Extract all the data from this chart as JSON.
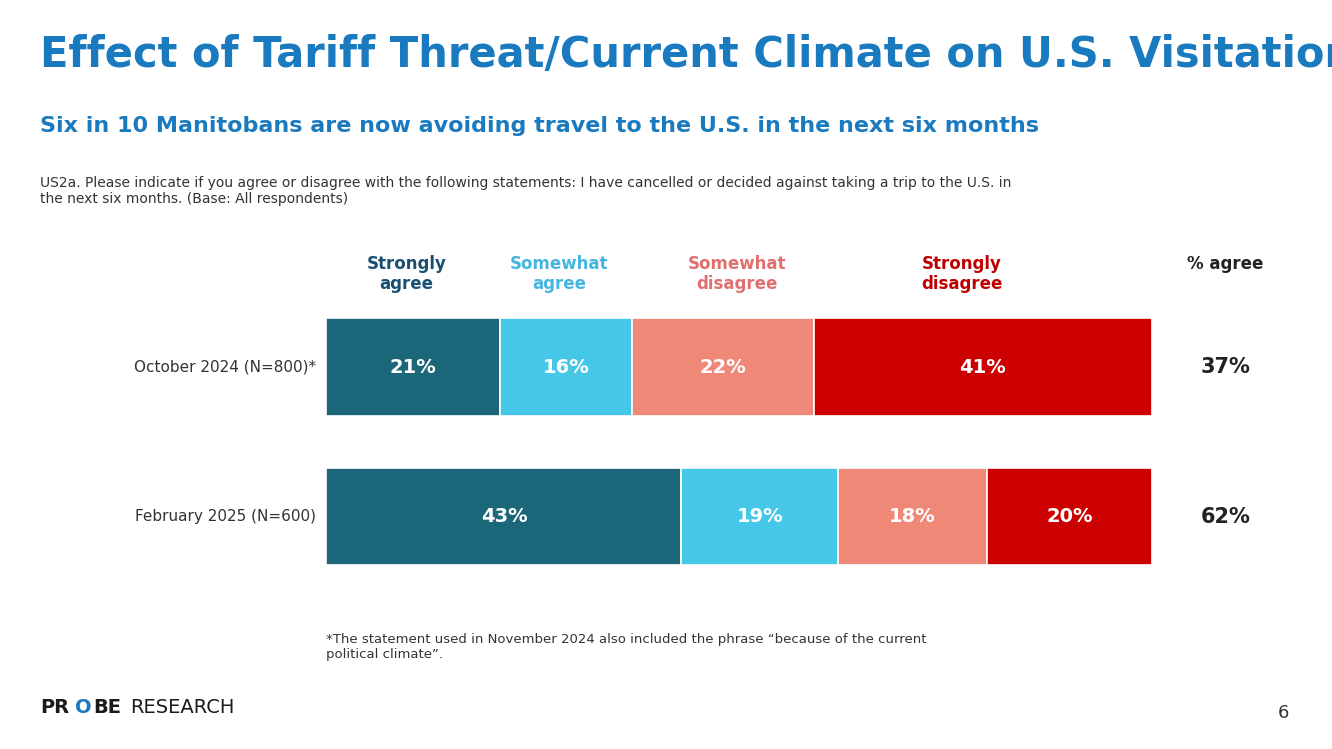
{
  "title": "Effect of Tariff Threat/Current Climate on U.S. Visitation",
  "subtitle": "Six in 10 Manitobans are now avoiding travel to the U.S. in the next six months",
  "question_text": "US2a. Please indicate if you agree or disagree with the following statements: I have cancelled or decided against taking a trip to the U.S. in\nthe next six months. (Base: All respondents)",
  "footnote": "*The statement used in November 2024 also included the phrase “because of the current\npolitical climate”.",
  "page_number": "6",
  "rows": [
    {
      "label": "October 2024 (N=800)*",
      "values": [
        21,
        16,
        22,
        41
      ],
      "pct_agree": "37%"
    },
    {
      "label": "February 2025 (N=600)",
      "values": [
        43,
        19,
        18,
        20
      ],
      "pct_agree": "62%"
    }
  ],
  "categories": [
    "Strongly\nagree",
    "Somewhat\nagree",
    "Somewhat\ndisagree",
    "Strongly\ndisagree"
  ],
  "header_colors": [
    "#1b4f72",
    "#45b5e0",
    "#e07070",
    "#c00000"
  ],
  "bar_colors": [
    "#1b6678",
    "#45c8e8",
    "#f08878",
    "#cc0000"
  ],
  "pct_agree_label": "% agree",
  "title_color": "#1a7abf",
  "subtitle_color": "#1a7abf",
  "question_color": "#333333",
  "background_color": "#ffffff",
  "bar_text_color": "#ffffff",
  "pct_agree_color": "#222222",
  "title_fontsize": 30,
  "subtitle_fontsize": 16,
  "question_fontsize": 10,
  "header_fontsize": 12,
  "bar_label_fontsize": 14,
  "pct_agree_fontsize": 15,
  "row_label_fontsize": 11,
  "footnote_fontsize": 9.5
}
